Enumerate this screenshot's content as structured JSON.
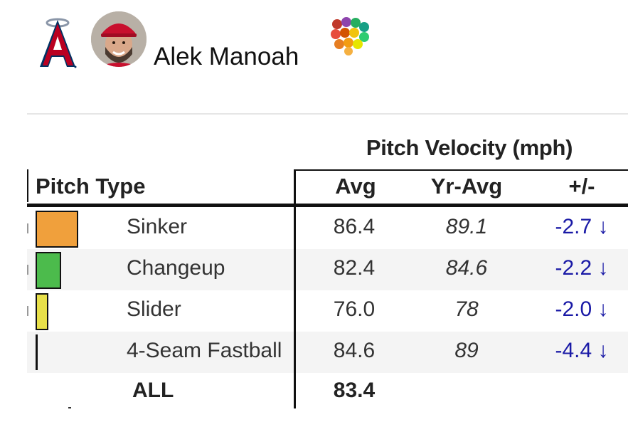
{
  "player": {
    "name": "Alek Manoah"
  },
  "table": {
    "group_header": "Pitch Velocity (mph)",
    "headers": {
      "pitch_type": "Pitch Type",
      "avg": "Avg",
      "yr_avg": "Yr-Avg",
      "diff": "+/-"
    },
    "rows": [
      {
        "pitch": "Sinker",
        "avg": "86.4",
        "yr_avg": "89.1",
        "diff": "-2.7 ↓",
        "color": "#f0a03c"
      },
      {
        "pitch": "Changeup",
        "avg": "82.4",
        "yr_avg": "84.6",
        "diff": "-2.2 ↓",
        "color": "#4cbb4c"
      },
      {
        "pitch": "Slider",
        "avg": "76.0",
        "yr_avg": "78",
        "diff": "-2.0 ↓",
        "color": "#e8e04a"
      },
      {
        "pitch": "4-Seam Fastball",
        "avg": "84.6",
        "yr_avg": "89",
        "diff": "-4.4 ↓",
        "color": "#111111"
      }
    ],
    "total": {
      "label": "ALL",
      "avg": "83.4"
    }
  },
  "colors": {
    "team_red": "#ba0021",
    "team_navy": "#003263",
    "diff_blue": "#1a1aa6"
  }
}
